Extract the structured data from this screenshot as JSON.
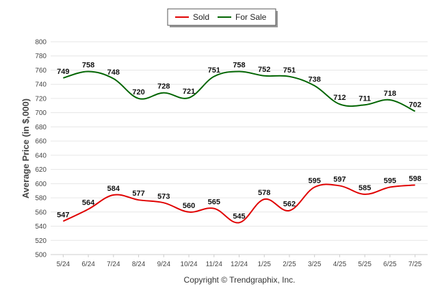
{
  "chart_data": {
    "type": "line",
    "categories": [
      "5/24",
      "6/24",
      "7/24",
      "8/24",
      "9/24",
      "10/24",
      "11/24",
      "12/24",
      "1/25",
      "2/25",
      "3/25",
      "4/25",
      "5/25",
      "6/25",
      "7/25"
    ],
    "series": [
      {
        "name": "Sold",
        "color": "#e00000",
        "values": [
          547,
          564,
          584,
          577,
          573,
          560,
          565,
          545,
          578,
          562,
          595,
          597,
          585,
          595,
          598
        ]
      },
      {
        "name": "For Sale",
        "color": "#006400",
        "values": [
          749,
          758,
          748,
          720,
          728,
          721,
          751,
          758,
          752,
          751,
          738,
          712,
          711,
          718,
          702
        ]
      }
    ],
    "ylabel": "Average Price (in $,000)",
    "ylim": [
      500,
      800
    ],
    "yticks": [
      500,
      520,
      540,
      560,
      580,
      600,
      620,
      640,
      660,
      680,
      700,
      720,
      740,
      760,
      780,
      800
    ],
    "grid": true,
    "legend": "top-center"
  },
  "footer": {
    "copyright": "Copyright © Trendgraphix, Inc."
  }
}
